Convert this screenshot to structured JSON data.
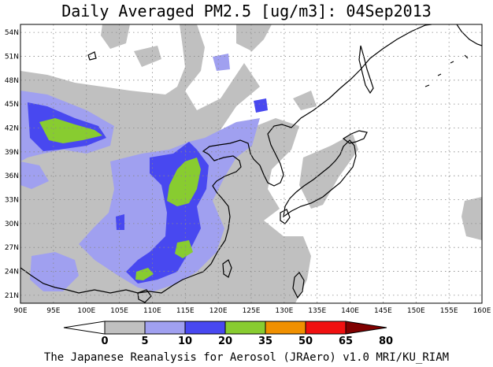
{
  "title": "Daily Averaged PM2.5 [ug/m3]: 04Sep2013",
  "credit": "The Japanese Reanalysis for Aerosol (JRAero) v1.0 MRI/KU_RIAM",
  "map": {
    "lon_range": [
      90,
      160
    ],
    "lat_range": [
      20,
      55
    ],
    "lon_ticks": [
      "90E",
      "95E",
      "100E",
      "105E",
      "110E",
      "115E",
      "120E",
      "125E",
      "130E",
      "135E",
      "140E",
      "145E",
      "150E",
      "155E",
      "160E"
    ],
    "lat_ticks": [
      "54N",
      "51N",
      "48N",
      "45N",
      "42N",
      "39N",
      "36N",
      "33N",
      "30N",
      "27N",
      "24N",
      "21N"
    ],
    "grid": "dotted"
  },
  "colorbar": {
    "labels": [
      "0",
      "5",
      "10",
      "20",
      "35",
      "50",
      "65",
      "80"
    ],
    "colors": [
      "#ffffff",
      "#c0c0c0",
      "#a0a0f0",
      "#4848f0",
      "#88cc30",
      "#f09000",
      "#f01010",
      "#800000"
    ]
  }
}
